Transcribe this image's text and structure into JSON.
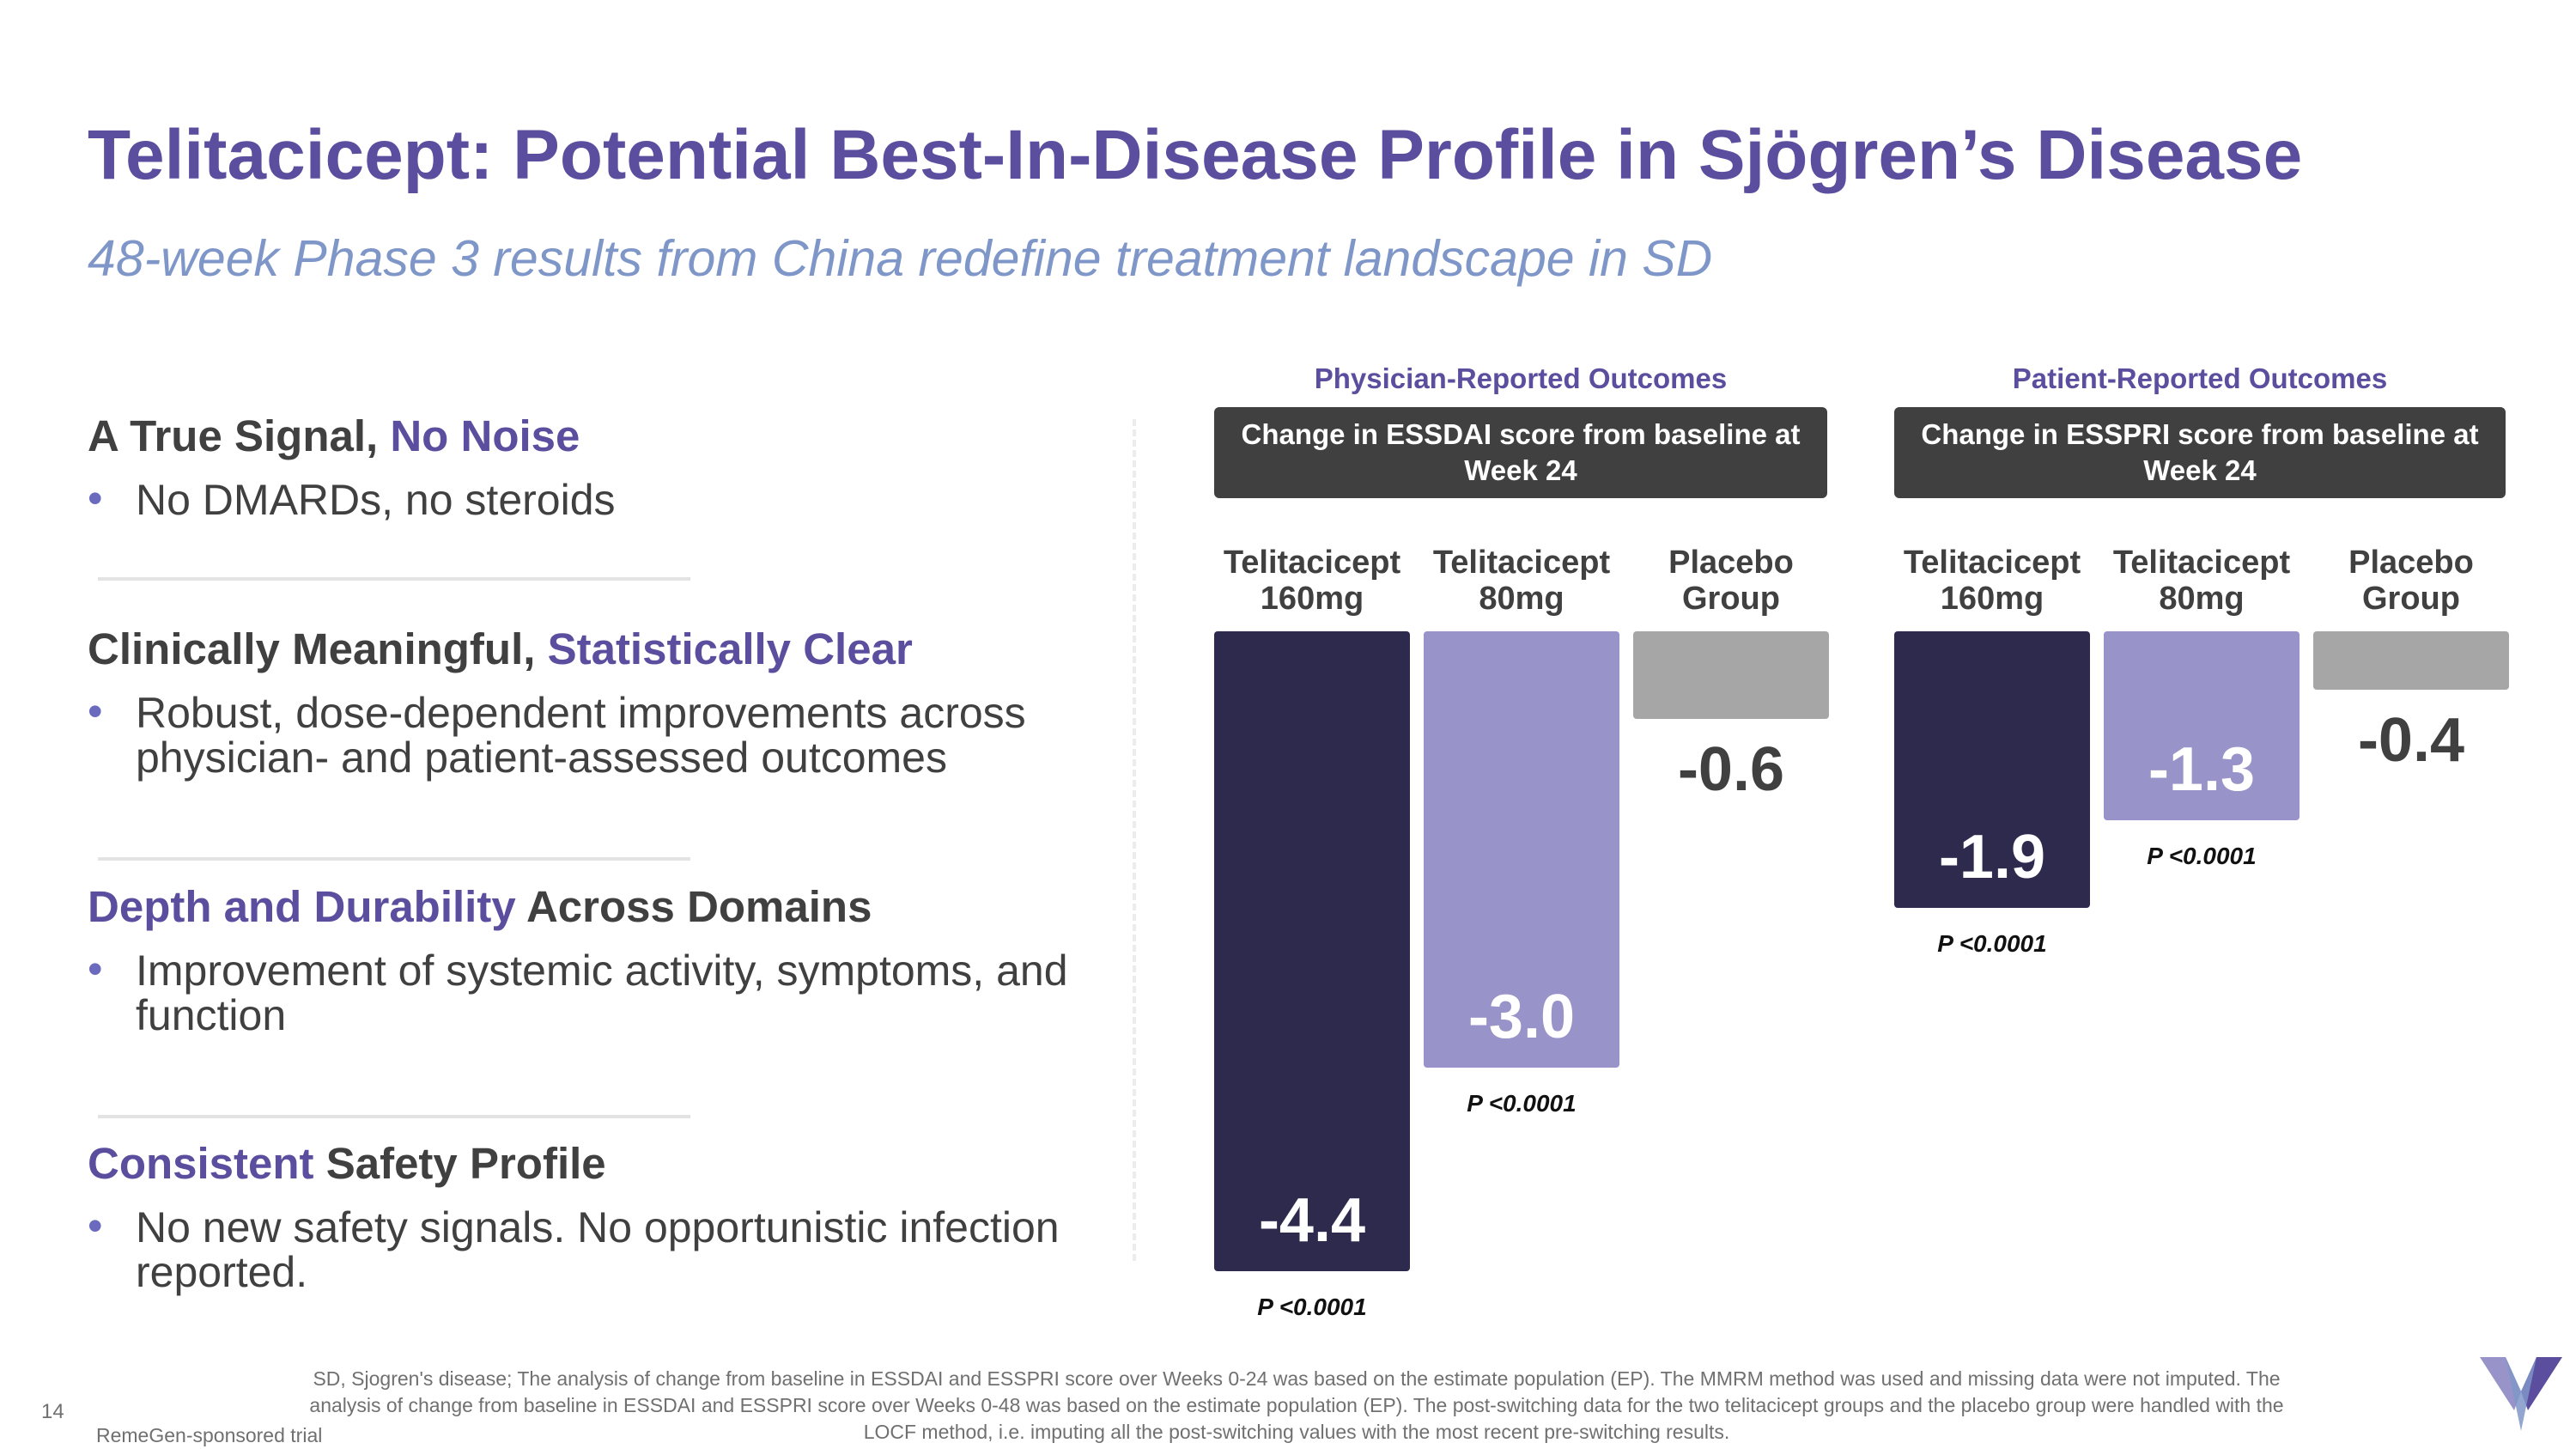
{
  "header": {
    "title": "Telitacicept: Potential Best-In-Disease Profile in Sjögren’s Disease",
    "subtitle": "48-week Phase 3 results from China redefine treatment landscape in SD"
  },
  "sections": [
    {
      "title_before": "A True Signal, ",
      "title_accent": "No Noise",
      "title_after": "",
      "bullet": "No DMARDs, no steroids"
    },
    {
      "title_before": "Clinically Meaningful, ",
      "title_accent": "Statistically Clear",
      "title_after": "",
      "bullet": "Robust, dose-dependent improvements across physician- and patient-assessed outcomes"
    },
    {
      "title_before": "",
      "title_accent": "Depth and Durability",
      "title_after": " Across Domains",
      "bullet": "Improvement of systemic activity, symptoms, and function"
    },
    {
      "title_before": "",
      "title_accent": "Consistent",
      "title_after": " Safety Profile",
      "bullet": "No new safety signals. No opportunistic infection reported."
    }
  ],
  "chart_data": [
    {
      "type": "bar",
      "group_title": "Physician-Reported Outcomes",
      "title": "Change in ESSDAI score from baseline at Week 24",
      "categories": [
        "Telitacicept 160mg",
        "Telitacicept 80mg",
        "Placebo Group"
      ],
      "category_lines": [
        [
          "Telitacicept",
          "160mg"
        ],
        [
          "Telitacicept",
          "80mg"
        ],
        [
          "Placebo",
          "Group"
        ]
      ],
      "values": [
        -4.4,
        -3.0,
        -0.6
      ],
      "value_labels": [
        "-4.4",
        "-3.0",
        "-0.6"
      ],
      "p_values": [
        "P <0.0001",
        "P <0.0001",
        ""
      ],
      "colors": [
        "#2d2a4e",
        "#9893c8",
        "#a6a6a6"
      ],
      "ylim": [
        -4.4,
        0
      ]
    },
    {
      "type": "bar",
      "group_title": "Patient-Reported Outcomes",
      "title": "Change in ESSPRI score from baseline at Week 24",
      "categories": [
        "Telitacicept 160mg",
        "Telitacicept 80mg",
        "Placebo Group"
      ],
      "category_lines": [
        [
          "Telitacicept",
          "160mg"
        ],
        [
          "Telitacicept",
          "80mg"
        ],
        [
          "Placebo",
          "Group"
        ]
      ],
      "values": [
        -1.9,
        -1.3,
        -0.4
      ],
      "value_labels": [
        "-1.9",
        "-1.3",
        "-0.4"
      ],
      "p_values": [
        "P <0.0001",
        "P <0.0001",
        ""
      ],
      "colors": [
        "#2d2a4e",
        "#9893c8",
        "#a6a6a6"
      ],
      "ylim": [
        -4.4,
        0
      ]
    }
  ],
  "footer": {
    "page_number": "14",
    "sponsor": "RemeGen-sponsored trial",
    "footnote_lines": [
      "SD, Sjogren's disease; The analysis of change from baseline in ESSDAI and  ESSPRI score over Weeks 0-24 was based on the estimate population (EP). The MMRM method was used and missing data were not imputed. The",
      "analysis of change from baseline in ESSDAI and ESSPRI score over Weeks 0-48 was based on the estimate population (EP). The post-switching data for the two telitacicept groups and the placebo group were handled with the",
      "LOCF method, i.e. imputing all the post-switching values with the most recent pre-switching results."
    ]
  },
  "logo": {
    "name": "company-logo",
    "colors": [
      "#5b4e9e",
      "#7f96c8",
      "#9893c8"
    ]
  }
}
